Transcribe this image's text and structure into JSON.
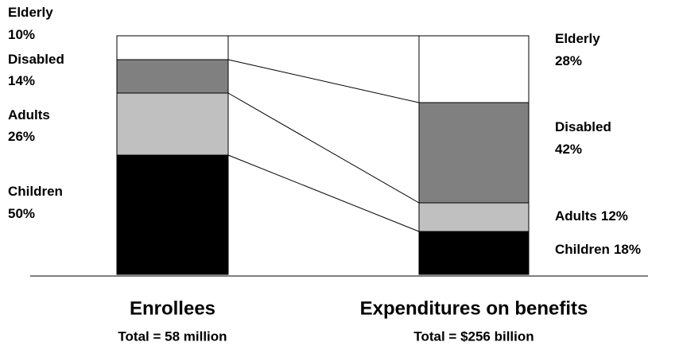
{
  "chart_data": {
    "type": "bar",
    "stacked": true,
    "categories": [
      "Enrollees",
      "Expenditures on benefits"
    ],
    "subtitles": [
      "Total = 58 million",
      "Total = $256 billion"
    ],
    "ylim": [
      0,
      100
    ],
    "series": [
      {
        "name": "Children",
        "color": "#000000",
        "values": [
          50,
          18
        ],
        "value_labels": [
          "50%",
          "18%"
        ]
      },
      {
        "name": "Adults",
        "color": "#c0c0c0",
        "values": [
          26,
          12
        ],
        "value_labels": [
          "26%",
          "12%"
        ]
      },
      {
        "name": "Disabled",
        "color": "#808080",
        "values": [
          14,
          42
        ],
        "value_labels": [
          "14%",
          "42%"
        ]
      },
      {
        "name": "Elderly",
        "color": "#ffffff",
        "values": [
          10,
          28
        ],
        "value_labels": [
          "10%",
          "28%"
        ]
      }
    ]
  }
}
